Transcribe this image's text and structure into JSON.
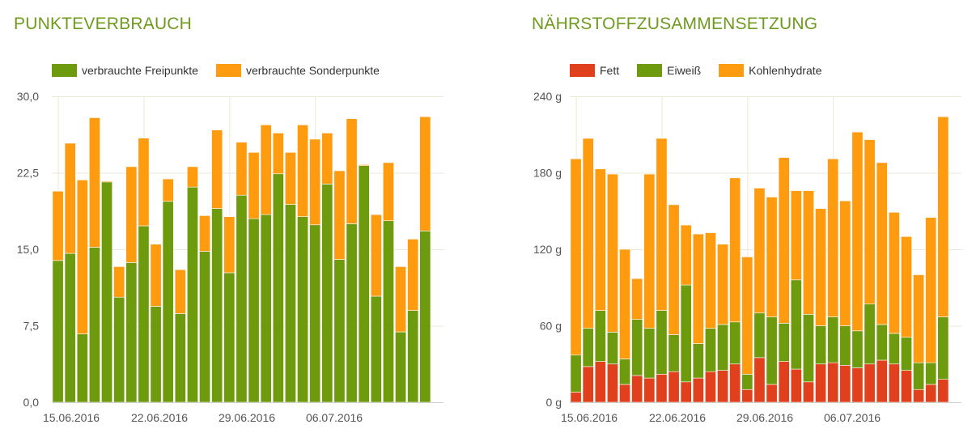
{
  "chart_data": [
    {
      "type": "bar",
      "stacked": true,
      "title": "PUNKTEVERBRAUCH",
      "x": [
        "15.06.2016",
        "16.06.2016",
        "17.06.2016",
        "18.06.2016",
        "19.06.2016",
        "20.06.2016",
        "21.06.2016",
        "22.06.2016",
        "23.06.2016",
        "24.06.2016",
        "25.06.2016",
        "26.06.2016",
        "27.06.2016",
        "28.06.2016",
        "29.06.2016",
        "30.06.2016",
        "01.07.2016",
        "02.07.2016",
        "03.07.2016",
        "04.07.2016",
        "05.07.2016",
        "06.07.2016",
        "07.07.2016",
        "08.07.2016",
        "09.07.2016",
        "10.07.2016",
        "11.07.2016",
        "12.07.2016",
        "13.07.2016",
        "14.07.2016",
        "15.07.2016",
        "16.07.2016"
      ],
      "x_tick_labels": [
        "15.06.2016",
        "22.06.2016",
        "29.06.2016",
        "06.07.2016"
      ],
      "y_tick_labels": [
        "0,0",
        "7,5",
        "15,0",
        "22,5",
        "30,0"
      ],
      "ylim": [
        0,
        30
      ],
      "grid": true,
      "legend_position": "top-left",
      "series": [
        {
          "name": "verbrauchte Freipunkte",
          "color": "#6e9a0e",
          "values": [
            13.9,
            14.6,
            6.7,
            15.2,
            21.6,
            10.3,
            13.7,
            17.3,
            9.4,
            19.7,
            8.7,
            21.1,
            14.8,
            19.0,
            12.7,
            20.3,
            18.0,
            18.4,
            22.4,
            19.4,
            18.2,
            17.4,
            21.4,
            14.0,
            17.5,
            23.2,
            10.4,
            17.8,
            6.9,
            9.0,
            16.8,
            0
          ]
        },
        {
          "name": "verbrauchte Sonderpunkte",
          "color": "#ff9b0f",
          "values": [
            6.8,
            10.8,
            15.1,
            12.7,
            0.1,
            3.0,
            9.4,
            8.6,
            6.1,
            2.2,
            4.3,
            2.0,
            3.5,
            7.7,
            5.5,
            5.2,
            6.5,
            8.8,
            4.0,
            5.1,
            9.0,
            8.4,
            5.0,
            8.7,
            10.3,
            0.1,
            8.0,
            5.7,
            6.4,
            7.0,
            11.2,
            0
          ]
        }
      ]
    },
    {
      "type": "bar",
      "stacked": true,
      "title": "NÄHRSTOFFZUSAMMENSETZUNG",
      "x": [
        "15.06.2016",
        "16.06.2016",
        "17.06.2016",
        "18.06.2016",
        "19.06.2016",
        "20.06.2016",
        "21.06.2016",
        "22.06.2016",
        "23.06.2016",
        "24.06.2016",
        "25.06.2016",
        "26.06.2016",
        "27.06.2016",
        "28.06.2016",
        "29.06.2016",
        "30.06.2016",
        "01.07.2016",
        "02.07.2016",
        "03.07.2016",
        "04.07.2016",
        "05.07.2016",
        "06.07.2016",
        "07.07.2016",
        "08.07.2016",
        "09.07.2016",
        "10.07.2016",
        "11.07.2016",
        "12.07.2016",
        "13.07.2016",
        "14.07.2016",
        "15.07.2016",
        "16.07.2016"
      ],
      "x_tick_labels": [
        "15.06.2016",
        "22.06.2016",
        "29.06.2016",
        "06.07.2016"
      ],
      "y_tick_labels": [
        "0 g",
        "60 g",
        "120 g",
        "180 g",
        "240 g"
      ],
      "ylim": [
        0,
        240
      ],
      "grid": true,
      "legend_position": "top-left",
      "series": [
        {
          "name": "Fett",
          "color": "#e0401c",
          "values": [
            8,
            28,
            32,
            30,
            14,
            21,
            19,
            22,
            24,
            16,
            19,
            24,
            25,
            30,
            10,
            35,
            14,
            32,
            26,
            16,
            30,
            31,
            29,
            27,
            30,
            33,
            30,
            25,
            10,
            14,
            18,
            0
          ]
        },
        {
          "name": "Eiweiß",
          "color": "#6e9a0e",
          "values": [
            29,
            30,
            40,
            25,
            20,
            44,
            39,
            50,
            29,
            76,
            27,
            34,
            36,
            33,
            12,
            35,
            53,
            30,
            70,
            53,
            30,
            36,
            31,
            29,
            47,
            28,
            24,
            26,
            21,
            17,
            49,
            0
          ]
        },
        {
          "name": "Kohlenhydrate",
          "color": "#ff9b0f",
          "values": [
            154,
            149,
            111,
            124,
            86,
            32,
            121,
            135,
            102,
            47,
            86,
            75,
            63,
            113,
            92,
            98,
            94,
            130,
            70,
            97,
            92,
            124,
            98,
            156,
            129,
            127,
            95,
            79,
            69,
            114,
            157,
            0
          ]
        }
      ]
    }
  ]
}
